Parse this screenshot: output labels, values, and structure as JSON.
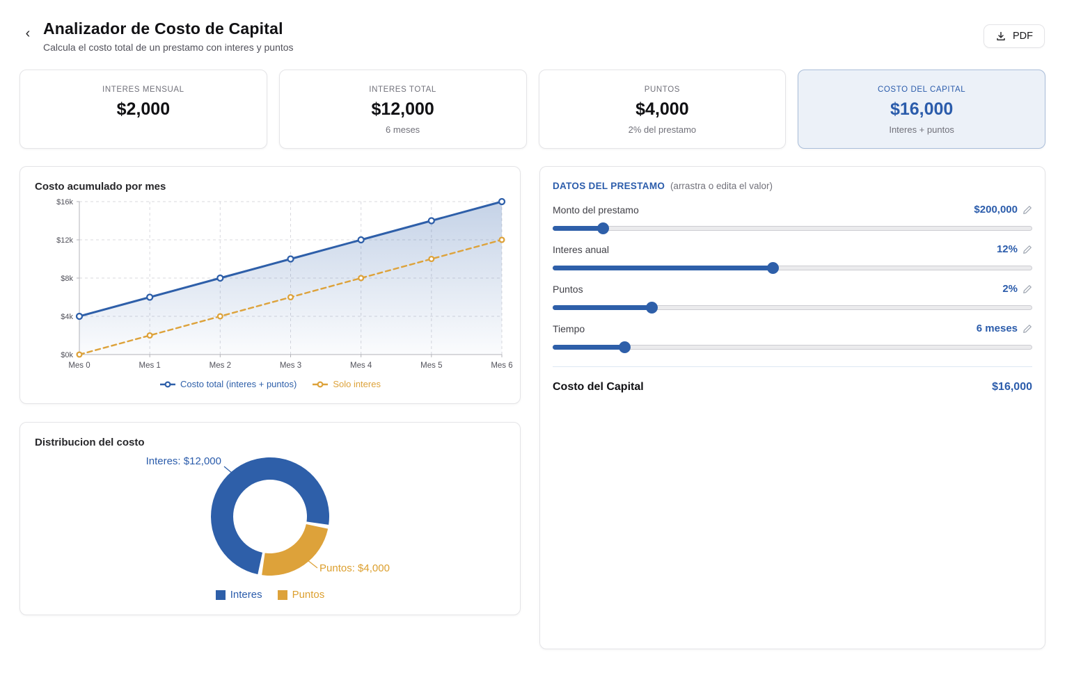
{
  "header": {
    "back_icon": "‹",
    "title": "Analizador de Costo de Capital",
    "subtitle": "Calcula el costo total de un prestamo con interes y puntos",
    "pdf_button": "PDF"
  },
  "colors": {
    "blue": "#2e5fa9",
    "blue_text": "#2b5cab",
    "orange": "#dda23a",
    "axis": "#b3b3b8",
    "grid": "#d9d9de",
    "tick_text": "#52525b"
  },
  "stat_cards": [
    {
      "label": "INTERES MENSUAL",
      "value": "$2,000",
      "subtitle": ""
    },
    {
      "label": "INTERES TOTAL",
      "value": "$12,000",
      "subtitle": "6 meses"
    },
    {
      "label": "PUNTOS",
      "value": "$4,000",
      "subtitle": "2% del prestamo"
    },
    {
      "label": "COSTO DEL CAPITAL",
      "value": "$16,000",
      "subtitle": "Interes + puntos"
    }
  ],
  "chart_data": [
    {
      "type": "line",
      "title": "Costo acumulado por mes",
      "x_labels": [
        "Mes 0",
        "Mes 1",
        "Mes 2",
        "Mes 3",
        "Mes 4",
        "Mes 5",
        "Mes 6"
      ],
      "y_ticks": [
        "$0k",
        "$4k",
        "$8k",
        "$12k",
        "$16k"
      ],
      "ylim": [
        0,
        16000
      ],
      "grid": true,
      "legend_position": "bottom",
      "series": [
        {
          "name": "Costo total (interes + puntos)",
          "color": "#2e5fa9",
          "style": "solid",
          "area_fill": true,
          "values": [
            4000,
            6000,
            8000,
            10000,
            12000,
            14000,
            16000
          ]
        },
        {
          "name": "Solo interes",
          "color": "#dda23a",
          "style": "dashed",
          "area_fill": false,
          "values": [
            0,
            2000,
            4000,
            6000,
            8000,
            10000,
            12000
          ]
        }
      ]
    },
    {
      "type": "pie",
      "title": "Distribucion del costo",
      "donut": true,
      "legend_position": "bottom",
      "slices": [
        {
          "name": "Interes",
          "value": 12000,
          "label": "Interes: $12,000",
          "color": "#2e5fa9",
          "text_color": "#2b5cab"
        },
        {
          "name": "Puntos",
          "value": 4000,
          "label": "Puntos: $4,000",
          "color": "#dda23a",
          "text_color": "#dc9f2e"
        }
      ]
    }
  ],
  "loan_panel": {
    "title": "DATOS DEL PRESTAMO",
    "hint": "(arrastra o edita el valor)",
    "sliders": [
      {
        "label": "Monto del prestamo",
        "value": "$200,000",
        "percent": 10.4
      },
      {
        "label": "Interes anual",
        "value": "12%",
        "percent": 45.9
      },
      {
        "label": "Puntos",
        "value": "2%",
        "percent": 20.5
      },
      {
        "label": "Tiempo",
        "value": "6 meses",
        "percent": 14.9
      }
    ],
    "total_label": "Costo del Capital",
    "total_value": "$16,000"
  }
}
